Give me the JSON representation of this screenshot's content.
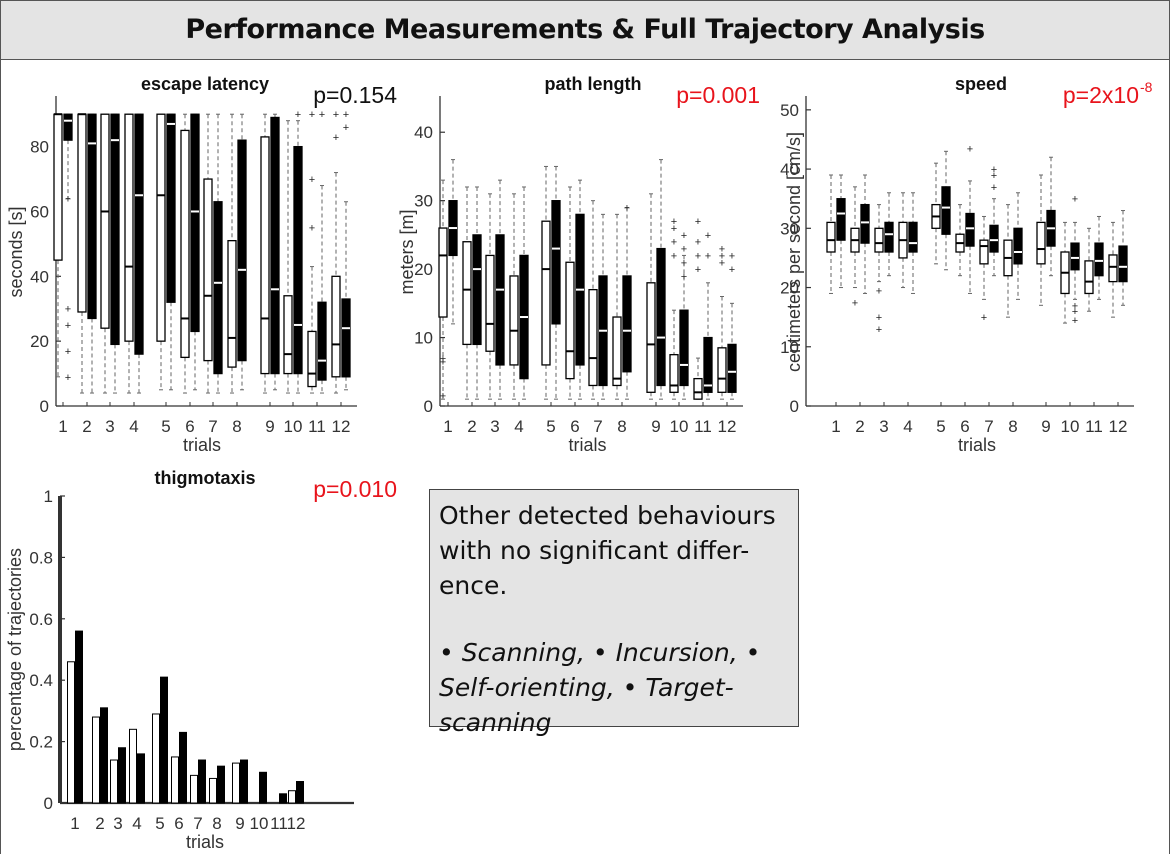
{
  "header": {
    "title": "Performance Measurements & Full Trajectory Analysis"
  },
  "colors": {
    "significant": "#e8141c",
    "not_significant": "#111111",
    "box_fill_a": "#ffffff",
    "box_fill_b": "#000000"
  },
  "note": {
    "line1": "Other detected behaviours with no significant differ-ence.",
    "line2": "• Scanning, • Incursion, • Self-orienting, • Target-scanning"
  },
  "chart_data": [
    {
      "id": "escape_latency",
      "type": "box",
      "title": "escape latency",
      "pvalue": "p=0.154",
      "pvalue_color": "#111111",
      "xlabel": "trials",
      "ylabel": "seconds [s]",
      "ylim": [
        0,
        95
      ],
      "yticks": [
        0,
        20,
        40,
        60,
        80
      ],
      "categories": [
        "1",
        "2",
        "3",
        "4",
        "5",
        "6",
        "7",
        "8",
        "9",
        "10",
        "11",
        "12"
      ],
      "series": [
        {
          "fill": "white",
          "boxes": [
            {
              "min": 9,
              "q1": 45,
              "med": 90,
              "q3": 90,
              "max": 90,
              "out": []
            },
            {
              "min": 4,
              "q1": 29,
              "med": 90,
              "q3": 90,
              "max": 90,
              "out": []
            },
            {
              "min": 4,
              "q1": 24,
              "med": 60,
              "q3": 90,
              "max": 90,
              "out": []
            },
            {
              "min": 4,
              "q1": 20,
              "med": 43,
              "q3": 90,
              "max": 90,
              "out": []
            },
            {
              "min": 5,
              "q1": 20,
              "med": 65,
              "q3": 90,
              "max": 90,
              "out": []
            },
            {
              "min": 4,
              "q1": 15,
              "med": 27,
              "q3": 85,
              "max": 90,
              "out": []
            },
            {
              "min": 4,
              "q1": 14,
              "med": 34,
              "q3": 70,
              "max": 90,
              "out": []
            },
            {
              "min": 4,
              "q1": 12,
              "med": 21,
              "q3": 51,
              "max": 90,
              "out": []
            },
            {
              "min": 4,
              "q1": 10,
              "med": 27,
              "q3": 83,
              "max": 90,
              "out": []
            },
            {
              "min": 4,
              "q1": 10,
              "med": 16,
              "q3": 34,
              "max": 88,
              "out": []
            },
            {
              "min": 4,
              "q1": 6,
              "med": 10,
              "q3": 23,
              "max": 43,
              "out": [
                90,
                70,
                55
              ]
            },
            {
              "min": 4,
              "q1": 9,
              "med": 19,
              "q3": 40,
              "max": 72,
              "out": [
                90,
                83
              ]
            }
          ]
        },
        {
          "fill": "black",
          "boxes": [
            {
              "min": 64,
              "q1": 82,
              "med": 88,
              "q3": 90,
              "max": 90,
              "out": [
                64,
                30,
                25,
                17,
                9
              ]
            },
            {
              "min": 4,
              "q1": 27,
              "med": 81,
              "q3": 90,
              "max": 90,
              "out": []
            },
            {
              "min": 4,
              "q1": 19,
              "med": 82,
              "q3": 90,
              "max": 90,
              "out": []
            },
            {
              "min": 4,
              "q1": 16,
              "med": 65,
              "q3": 90,
              "max": 90,
              "out": []
            },
            {
              "min": 5,
              "q1": 32,
              "med": 87,
              "q3": 90,
              "max": 90,
              "out": []
            },
            {
              "min": 5,
              "q1": 23,
              "med": 60,
              "q3": 90,
              "max": 90,
              "out": []
            },
            {
              "min": 4,
              "q1": 10,
              "med": 38,
              "q3": 63,
              "max": 90,
              "out": []
            },
            {
              "min": 5,
              "q1": 14,
              "med": 42,
              "q3": 82,
              "max": 90,
              "out": []
            },
            {
              "min": 5,
              "q1": 10,
              "med": 36,
              "q3": 89,
              "max": 90,
              "out": []
            },
            {
              "min": 4,
              "q1": 10,
              "med": 25,
              "q3": 80,
              "max": 88,
              "out": [
                90
              ]
            },
            {
              "min": 4,
              "q1": 8,
              "med": 14,
              "q3": 32,
              "max": 68,
              "out": [
                90
              ]
            },
            {
              "min": 5,
              "q1": 9,
              "med": 24,
              "q3": 33,
              "max": 63,
              "out": [
                90,
                86
              ]
            }
          ]
        }
      ]
    },
    {
      "id": "path_length",
      "type": "box",
      "title": "path length",
      "pvalue": "p=0.001",
      "pvalue_color": "#e8141c",
      "xlabel": "trials",
      "ylabel": "meters [m]",
      "ylim": [
        0,
        45
      ],
      "yticks": [
        0,
        10,
        20,
        30,
        40
      ],
      "categories": [
        "1",
        "2",
        "3",
        "4",
        "5",
        "6",
        "7",
        "8",
        "9",
        "10",
        "11",
        "12"
      ],
      "series": [
        {
          "fill": "white",
          "boxes": [
            {
              "min": 1,
              "q1": 13,
              "med": 22,
              "q3": 26,
              "max": 33,
              "out": [
                7,
                6.5,
                1.5
              ]
            },
            {
              "min": 1,
              "q1": 9,
              "med": 17,
              "q3": 24,
              "max": 32,
              "out": []
            },
            {
              "min": 1,
              "q1": 8,
              "med": 12,
              "q3": 22,
              "max": 31,
              "out": []
            },
            {
              "min": 1,
              "q1": 6,
              "med": 11,
              "q3": 19,
              "max": 31,
              "out": []
            },
            {
              "min": 1,
              "q1": 6,
              "med": 20,
              "q3": 27,
              "max": 35,
              "out": []
            },
            {
              "min": 1,
              "q1": 4,
              "med": 8,
              "q3": 21,
              "max": 32,
              "out": []
            },
            {
              "min": 1,
              "q1": 3,
              "med": 7,
              "q3": 17,
              "max": 30,
              "out": []
            },
            {
              "min": 1,
              "q1": 3,
              "med": 4,
              "q3": 13,
              "max": 28,
              "out": []
            },
            {
              "min": 1,
              "q1": 2,
              "med": 9,
              "q3": 18,
              "max": 31,
              "out": []
            },
            {
              "min": 1,
              "q1": 2,
              "med": 3,
              "q3": 7.5,
              "max": 14,
              "out": [
                27,
                26,
                24,
                22
              ]
            },
            {
              "min": 1,
              "q1": 1,
              "med": 2,
              "q3": 4,
              "max": 7,
              "out": [
                27,
                24,
                22,
                20
              ]
            },
            {
              "min": 1,
              "q1": 2,
              "med": 4,
              "q3": 8.5,
              "max": 16,
              "out": [
                23,
                22,
                21
              ]
            }
          ]
        },
        {
          "fill": "black",
          "boxes": [
            {
              "min": 12,
              "q1": 22,
              "med": 26,
              "q3": 30,
              "max": 36,
              "out": []
            },
            {
              "min": 1,
              "q1": 9,
              "med": 20,
              "q3": 25,
              "max": 32,
              "out": []
            },
            {
              "min": 1,
              "q1": 6,
              "med": 17,
              "q3": 25,
              "max": 33,
              "out": []
            },
            {
              "min": 1,
              "q1": 4,
              "med": 13,
              "q3": 22,
              "max": 32,
              "out": []
            },
            {
              "min": 1,
              "q1": 12,
              "med": 23,
              "q3": 30,
              "max": 35,
              "out": []
            },
            {
              "min": 1,
              "q1": 6,
              "med": 17,
              "q3": 28,
              "max": 33,
              "out": []
            },
            {
              "min": 1,
              "q1": 3,
              "med": 11,
              "q3": 19,
              "max": 28,
              "out": []
            },
            {
              "min": 1,
              "q1": 5,
              "med": 11,
              "q3": 19,
              "max": 29,
              "out": [
                29
              ]
            },
            {
              "min": 1,
              "q1": 3,
              "med": 10,
              "q3": 23,
              "max": 36,
              "out": []
            },
            {
              "min": 1,
              "q1": 3,
              "med": 6,
              "q3": 14,
              "max": 22,
              "out": [
                25,
                23,
                21,
                19
              ]
            },
            {
              "min": 1,
              "q1": 2,
              "med": 3,
              "q3": 10,
              "max": 18,
              "out": [
                25,
                22
              ]
            },
            {
              "min": 1,
              "q1": 2,
              "med": 5,
              "q3": 9,
              "max": 15,
              "out": [
                22,
                20
              ]
            }
          ]
        }
      ]
    },
    {
      "id": "speed",
      "type": "box",
      "title": "speed",
      "pvalue": "p=2x10",
      "pvalue_exp": "-8",
      "pvalue_color": "#e8141c",
      "xlabel": "trials",
      "ylabel": "centimeters per second [cm/s]",
      "ylim": [
        0,
        52
      ],
      "yticks": [
        0,
        10,
        20,
        30,
        40,
        50
      ],
      "categories": [
        "1",
        "2",
        "3",
        "4",
        "5",
        "6",
        "7",
        "8",
        "9",
        "10",
        "11",
        "12"
      ],
      "series": [
        {
          "fill": "white",
          "boxes": [
            {
              "min": 19,
              "q1": 26,
              "med": 28,
              "q3": 31,
              "max": 39,
              "out": []
            },
            {
              "min": 20,
              "q1": 26,
              "med": 28,
              "q3": 30,
              "max": 37,
              "out": [
                17.5
              ]
            },
            {
              "min": 21,
              "q1": 26,
              "med": 27.5,
              "q3": 30,
              "max": 34,
              "out": [
                19.5,
                15,
                13
              ]
            },
            {
              "min": 20,
              "q1": 25,
              "med": 28,
              "q3": 31,
              "max": 36,
              "out": []
            },
            {
              "min": 24,
              "q1": 30,
              "med": 32,
              "q3": 34,
              "max": 41,
              "out": []
            },
            {
              "min": 22,
              "q1": 26,
              "med": 27.5,
              "q3": 29,
              "max": 34,
              "out": []
            },
            {
              "min": 18,
              "q1": 24,
              "med": 27,
              "q3": 28,
              "max": 32,
              "out": [
                15
              ]
            },
            {
              "min": 15,
              "q1": 22,
              "med": 25,
              "q3": 28,
              "max": 34,
              "out": []
            },
            {
              "min": 17,
              "q1": 24,
              "med": 26.5,
              "q3": 31,
              "max": 39,
              "out": []
            },
            {
              "min": 14,
              "q1": 19,
              "med": 22.5,
              "q3": 26,
              "max": 31,
              "out": []
            },
            {
              "min": 16,
              "q1": 19,
              "med": 21,
              "q3": 24.5,
              "max": 30,
              "out": []
            },
            {
              "min": 15,
              "q1": 21,
              "med": 23.5,
              "q3": 25.5,
              "max": 31,
              "out": []
            }
          ]
        },
        {
          "fill": "black",
          "boxes": [
            {
              "min": 20,
              "q1": 28,
              "med": 32.5,
              "q3": 35,
              "max": 39,
              "out": []
            },
            {
              "min": 19,
              "q1": 27.5,
              "med": 31,
              "q3": 34,
              "max": 39,
              "out": []
            },
            {
              "min": 22,
              "q1": 26,
              "med": 29,
              "q3": 31,
              "max": 36,
              "out": []
            },
            {
              "min": 19,
              "q1": 26,
              "med": 27.5,
              "q3": 31,
              "max": 36,
              "out": []
            },
            {
              "min": 23,
              "q1": 29,
              "med": 33.5,
              "q3": 37,
              "max": 43,
              "out": []
            },
            {
              "min": 19,
              "q1": 27,
              "med": 30,
              "q3": 32.5,
              "max": 38,
              "out": [
                43.5
              ]
            },
            {
              "min": 22,
              "q1": 26,
              "med": 28,
              "q3": 30.5,
              "max": 35,
              "out": [
                40,
                39,
                37
              ]
            },
            {
              "min": 18,
              "q1": 24,
              "med": 26,
              "q3": 30,
              "max": 36,
              "out": []
            },
            {
              "min": 22,
              "q1": 27,
              "med": 30,
              "q3": 33,
              "max": 42,
              "out": []
            },
            {
              "min": 18,
              "q1": 23,
              "med": 25,
              "q3": 27.5,
              "max": 31,
              "out": [
                35,
                17,
                16,
                14.5
              ]
            },
            {
              "min": 18,
              "q1": 22,
              "med": 24.5,
              "q3": 27.5,
              "max": 32,
              "out": []
            },
            {
              "min": 17,
              "q1": 21,
              "med": 23.5,
              "q3": 27,
              "max": 33,
              "out": []
            }
          ]
        }
      ]
    },
    {
      "id": "thigmotaxis",
      "type": "bar",
      "title": "thigmotaxis",
      "pvalue": "p=0.010",
      "pvalue_color": "#e8141c",
      "xlabel": "trials",
      "ylabel": "percentage of trajectories",
      "ylim": [
        0,
        1
      ],
      "yticks": [
        0,
        0.2,
        0.4,
        0.6,
        0.8,
        1
      ],
      "ytick_labels": [
        "0",
        "0.2",
        "0.4",
        "0.6",
        "0.8",
        "1"
      ],
      "categories": [
        "1",
        "2",
        "3",
        "4",
        "5",
        "6",
        "7",
        "8",
        "9",
        "10",
        "11",
        "12"
      ],
      "series": [
        {
          "fill": "white",
          "values": [
            0.46,
            0.28,
            0.14,
            0.24,
            0.29,
            0.15,
            0.09,
            0.08,
            0.13,
            0.0,
            0.0,
            0.04
          ]
        },
        {
          "fill": "black",
          "values": [
            0.56,
            0.31,
            0.18,
            0.16,
            0.41,
            0.23,
            0.14,
            0.12,
            0.14,
            0.1,
            0.03,
            0.07
          ]
        }
      ]
    }
  ]
}
